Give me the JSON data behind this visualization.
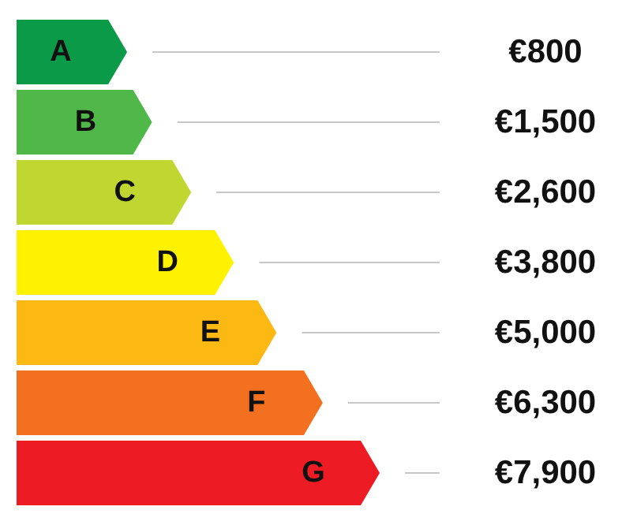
{
  "chart_data": {
    "type": "other",
    "categories": [
      "A",
      "B",
      "C",
      "D",
      "E",
      "F",
      "G"
    ],
    "values": [
      800,
      1500,
      2600,
      3800,
      5000,
      6300,
      7900
    ],
    "value_labels": [
      "€800",
      "€1,500",
      "€2,600",
      "€3,800",
      "€5,000",
      "€6,300",
      "€7,900"
    ],
    "colors": [
      "#0a9a48",
      "#50b848",
      "#bfd730",
      "#fff200",
      "#fdb913",
      "#f37021",
      "#ed1c24"
    ]
  }
}
